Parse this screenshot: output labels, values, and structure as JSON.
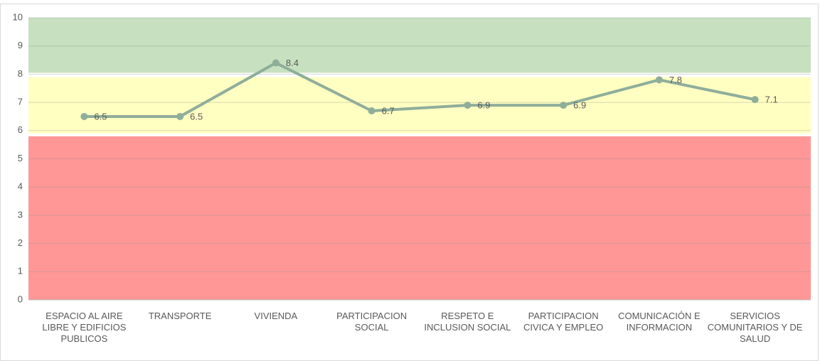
{
  "chart_data": {
    "type": "line",
    "categories": [
      "ESPACIO AL AIRE LIBRE Y EDIFICIOS PUBLICOS",
      "TRANSPORTE",
      "VIVIENDA",
      "PARTICIPACION SOCIAL",
      "RESPETO E INCLUSION SOCIAL",
      "PARTICIPACION CIVICA Y EMPLEO",
      "COMUNICACIÓN E INFORMACION",
      "SERVICIOS COMUNITARIOS Y DE SALUD"
    ],
    "values": [
      6.5,
      6.5,
      8.4,
      6.7,
      6.9,
      6.9,
      7.8,
      7.1
    ],
    "color": "#8fae9a",
    "ylim": [
      0,
      10
    ],
    "yticks": [
      0,
      1,
      2,
      3,
      4,
      5,
      6,
      7,
      8,
      9,
      10
    ],
    "grid": true,
    "bands": [
      {
        "from": 0,
        "to": 5.8,
        "color": "#ff9797"
      },
      {
        "from": 5.9,
        "to": 7.9,
        "color": "#ffffc2"
      },
      {
        "from": 8.05,
        "to": 10,
        "color": "#c7e1c0"
      }
    ]
  }
}
